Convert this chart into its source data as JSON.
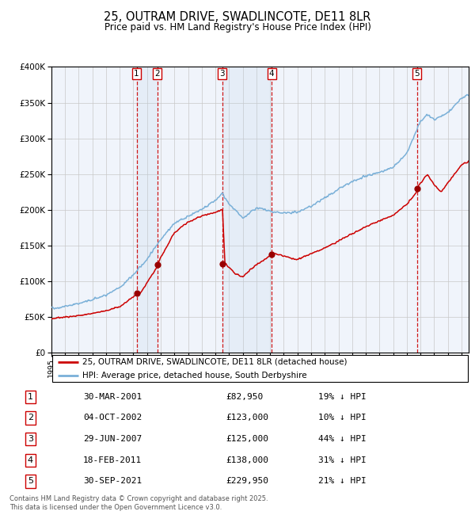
{
  "title": "25, OUTRAM DRIVE, SWADLINCOTE, DE11 8LR",
  "subtitle": "Price paid vs. HM Land Registry's House Price Index (HPI)",
  "hpi_color": "#7ab0d8",
  "price_color": "#cc0000",
  "marker_color": "#990000",
  "transactions": [
    {
      "num": 1,
      "date_str": "30-MAR-2001",
      "year": 2001.24,
      "price": 82950,
      "pct": "19% ↓ HPI",
      "label": "1"
    },
    {
      "num": 2,
      "date_str": "04-OCT-2002",
      "year": 2002.75,
      "price": 123000,
      "pct": "10% ↓ HPI",
      "label": "2"
    },
    {
      "num": 3,
      "date_str": "29-JUN-2007",
      "year": 2007.49,
      "price": 125000,
      "pct": "44% ↓ HPI",
      "label": "3"
    },
    {
      "num": 4,
      "date_str": "18-FEB-2011",
      "year": 2011.12,
      "price": 138000,
      "pct": "31% ↓ HPI",
      "label": "4"
    },
    {
      "num": 5,
      "date_str": "30-SEP-2021",
      "year": 2021.74,
      "price": 229950,
      "pct": "21% ↓ HPI",
      "label": "5"
    }
  ],
  "legend_line1": "25, OUTRAM DRIVE, SWADLINCOTE, DE11 8LR (detached house)",
  "legend_line2": "HPI: Average price, detached house, South Derbyshire",
  "table_rows": [
    [
      "1",
      "30-MAR-2001",
      "£82,950",
      "19% ↓ HPI"
    ],
    [
      "2",
      "04-OCT-2002",
      "£123,000",
      "10% ↓ HPI"
    ],
    [
      "3",
      "29-JUN-2007",
      "£125,000",
      "44% ↓ HPI"
    ],
    [
      "4",
      "18-FEB-2011",
      "£138,000",
      "31% ↓ HPI"
    ],
    [
      "5",
      "30-SEP-2021",
      "£229,950",
      "21% ↓ HPI"
    ]
  ],
  "footer": "Contains HM Land Registry data © Crown copyright and database right 2025.\nThis data is licensed under the Open Government Licence v3.0.",
  "xmin": 1995.0,
  "xmax": 2025.5,
  "ymin": 0,
  "ymax": 400000,
  "yticks": [
    0,
    50000,
    100000,
    150000,
    200000,
    250000,
    300000,
    350000,
    400000
  ]
}
